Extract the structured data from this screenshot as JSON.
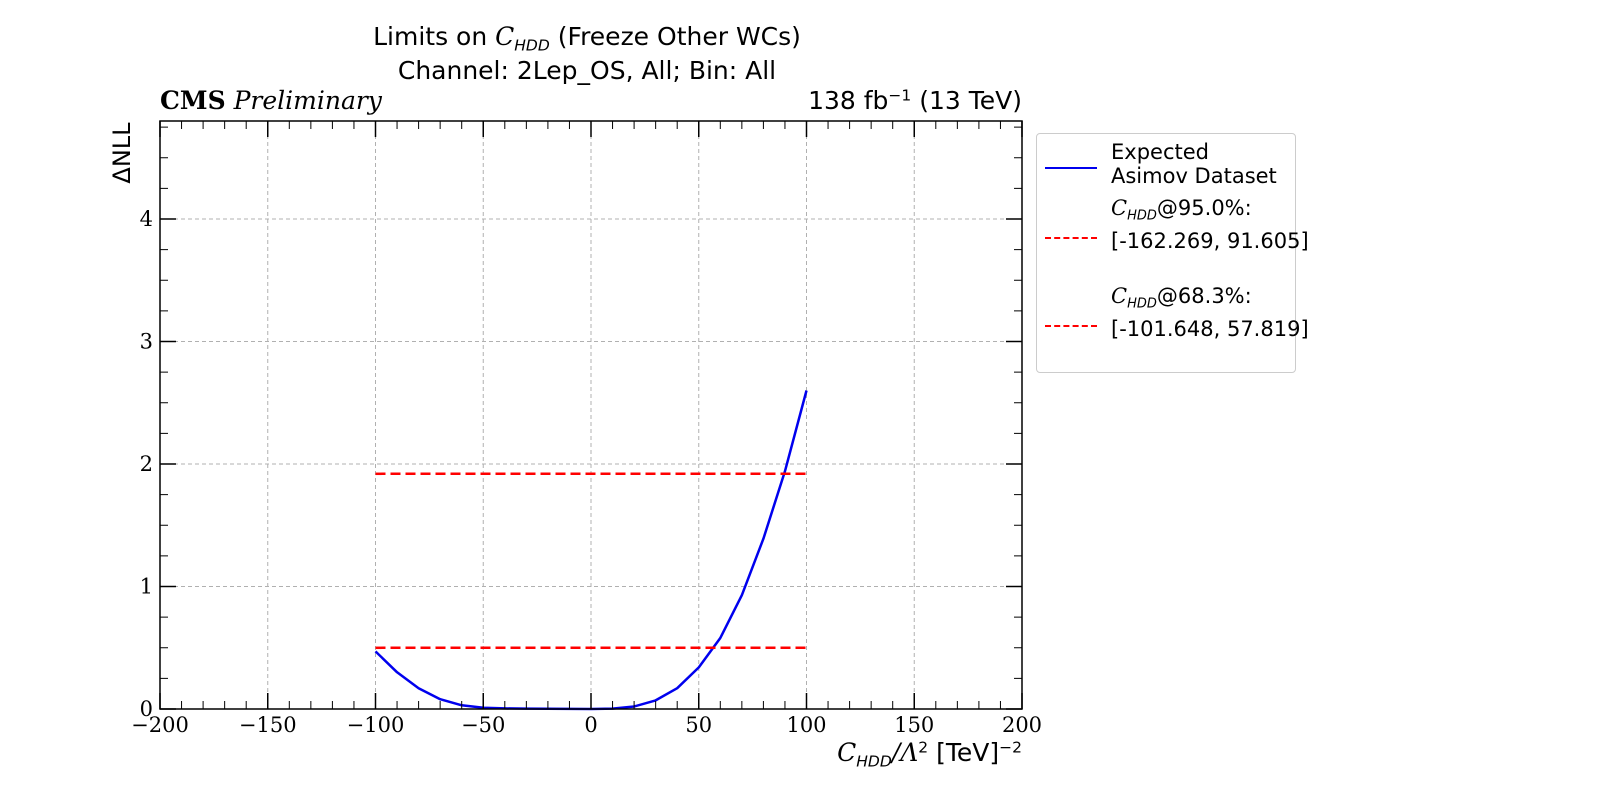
{
  "title": {
    "line1_prefix": "Limits on ",
    "line1_var": "C",
    "line1_sub": "HDD",
    "line1_suffix": " (Freeze Other WCs)",
    "line2": "Channel: 2Lep_OS, All; Bin: All"
  },
  "header": {
    "experiment": "CMS",
    "status": "Preliminary",
    "lumi_value": "138 fb",
    "lumi_exp": "−1",
    "lumi_energy": " (13 TeV)"
  },
  "axes": {
    "xlabel_var": "C",
    "xlabel_sub": "HDD",
    "xlabel_mid": "/Λ",
    "xlabel_exp2": "2",
    "xlabel_units": " [TeV]",
    "xlabel_exp": "−2",
    "ylabel": "ΔNLL"
  },
  "legend": {
    "expected_line1": "Expected",
    "expected_line2": "Asimov Dataset",
    "cl95_var": "C",
    "cl95_sub": "HDD",
    "cl95_suffix": "@95.0%:",
    "cl95_interval": "[-162.269, 91.605]",
    "cl68_var": "C",
    "cl68_sub": "HDD",
    "cl68_suffix": "@68.3%:",
    "cl68_interval": "[-101.648, 57.819]"
  },
  "colors": {
    "expected": "#0000ee",
    "threshold": "#ff0000",
    "grid": "#b0b0b0"
  },
  "chart_data": {
    "type": "line",
    "xlim": [
      -200,
      200
    ],
    "ylim": [
      0,
      4.8
    ],
    "xticks": [
      -200,
      -150,
      -100,
      -50,
      0,
      50,
      100,
      150,
      200
    ],
    "yticks": [
      0,
      1,
      2,
      3,
      4
    ],
    "grid": true,
    "legend_position": "outside-right",
    "series": [
      {
        "name": "Expected Asimov Dataset",
        "style": "solid",
        "x": [
          -100,
          -90,
          -80,
          -70,
          -60,
          -50,
          -40,
          -30,
          -20,
          -10,
          0,
          10,
          20,
          30,
          40,
          50,
          60,
          70,
          80,
          90,
          100
        ],
        "y": [
          0.47,
          0.3,
          0.17,
          0.08,
          0.03,
          0.01,
          0.005,
          0.003,
          0.002,
          0.001,
          0.0,
          0.003,
          0.02,
          0.07,
          0.17,
          0.34,
          0.58,
          0.93,
          1.39,
          1.94,
          2.6
        ]
      },
      {
        "name": "95.0% threshold",
        "style": "dashed",
        "x": [
          -100,
          100
        ],
        "y": [
          1.92,
          1.92
        ]
      },
      {
        "name": "68.3% threshold",
        "style": "dashed",
        "x": [
          -100,
          100
        ],
        "y": [
          0.5,
          0.5
        ]
      }
    ]
  }
}
